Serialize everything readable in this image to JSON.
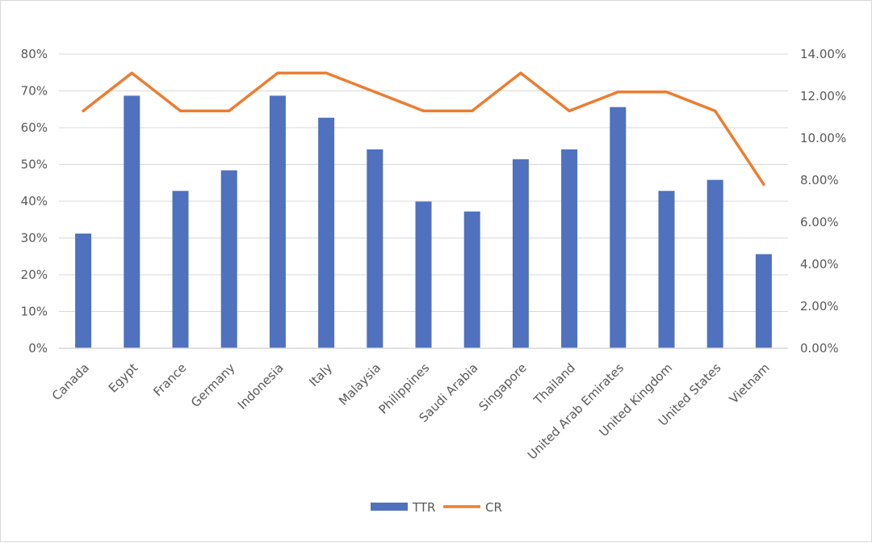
{
  "chart_data": {
    "type": "bar",
    "title": "",
    "xlabel": "",
    "ylabel": "",
    "categories": [
      "Canada",
      "Egypt",
      "France",
      "Germany",
      "Indonesia",
      "Italy",
      "Malaysia",
      "Philippines",
      "Saudi Arabia",
      "Singapore",
      "Thailand",
      "United Arab Emirates",
      "United Kingdom",
      "United States",
      "Vietnam"
    ],
    "series": [
      {
        "name": "TTR",
        "type": "bar",
        "axis": "left",
        "color": "#4f71be",
        "values": [
          31.2,
          68.7,
          42.8,
          48.4,
          68.7,
          62.7,
          54.1,
          39.9,
          37.2,
          51.4,
          54.1,
          65.6,
          42.8,
          45.8,
          25.6
        ]
      },
      {
        "name": "CR",
        "type": "line",
        "axis": "right",
        "color": "#ed7d31",
        "values": [
          11.3,
          13.1,
          11.3,
          11.3,
          13.1,
          13.1,
          12.2,
          11.3,
          11.3,
          13.1,
          11.3,
          12.2,
          12.2,
          11.3,
          7.8
        ]
      }
    ],
    "y_left": {
      "ylim": [
        0,
        80
      ],
      "ticks": [
        0,
        10,
        20,
        30,
        40,
        50,
        60,
        70,
        80
      ],
      "tick_labels": [
        "0%",
        "10%",
        "20%",
        "30%",
        "40%",
        "50%",
        "60%",
        "70%",
        "80%"
      ]
    },
    "y_right": {
      "ylim": [
        0,
        14
      ],
      "ticks": [
        0,
        2,
        4,
        6,
        8,
        10,
        12,
        14
      ],
      "tick_labels": [
        "0.00%",
        "2.00%",
        "4.00%",
        "6.00%",
        "8.00%",
        "10.00%",
        "12.00%",
        "14.00%"
      ]
    },
    "grid": true,
    "legend": {
      "position": "bottom",
      "entries": [
        "TTR",
        "CR"
      ]
    },
    "colors": {
      "grid": "#d9d9d9",
      "axis": "#d9d9d9",
      "text": "#595959"
    }
  }
}
